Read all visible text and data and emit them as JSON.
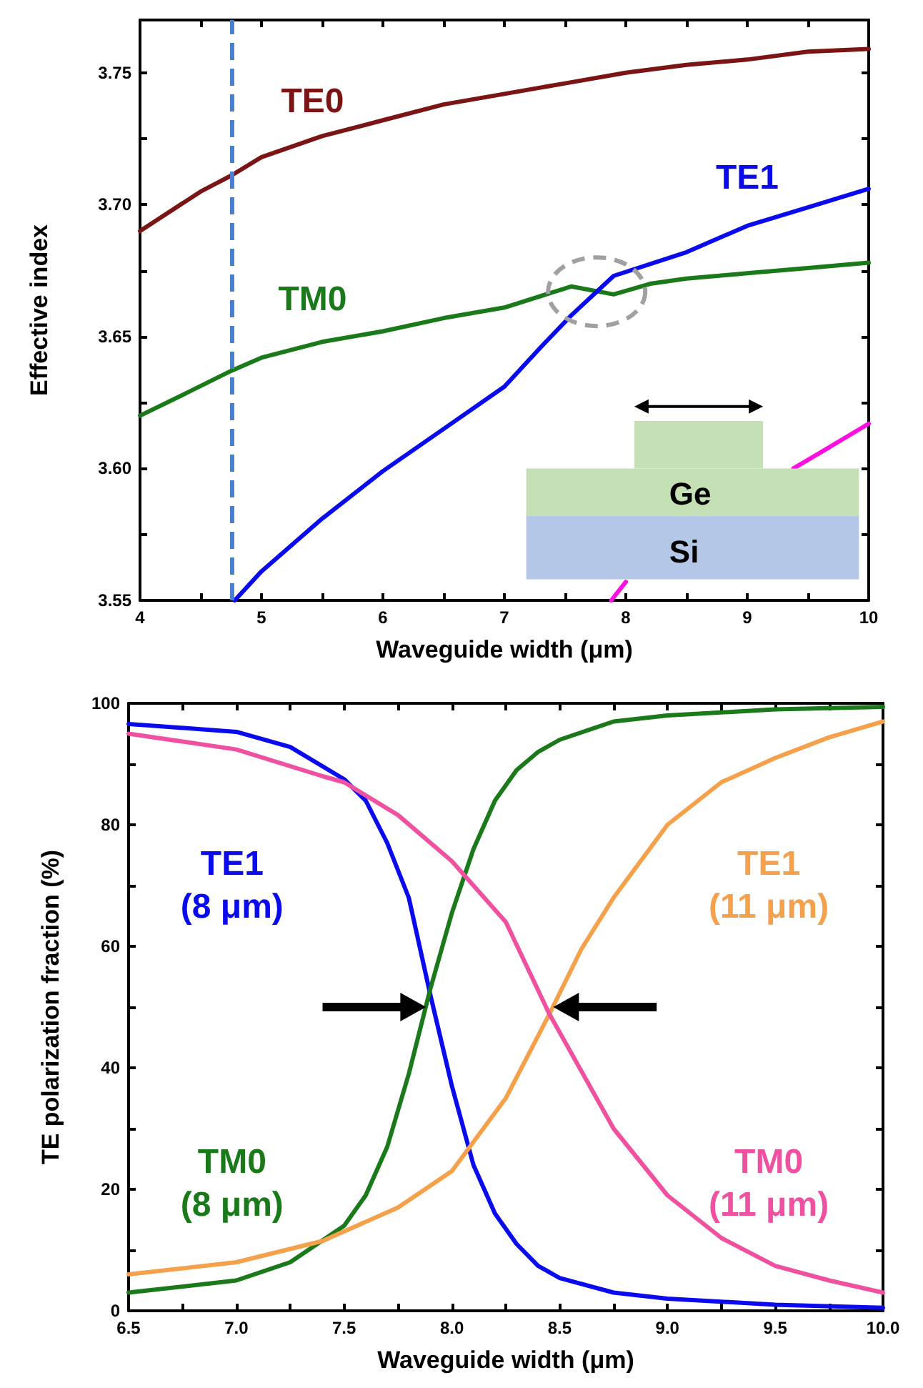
{
  "chart_data": [
    {
      "type": "line",
      "xlabel": "Waveguide width (μm)",
      "ylabel": "Effective index",
      "xlim": [
        4,
        10
      ],
      "ylim": [
        3.55,
        3.77
      ],
      "xticks": [
        4,
        {
          "value": 4.5,
          "label": null
        },
        5,
        {
          "value": 5.5,
          "label": null
        },
        6,
        {
          "value": 6.5,
          "label": null
        },
        7,
        {
          "value": 7.5,
          "label": null
        },
        8,
        {
          "value": 8.5,
          "label": null
        },
        9,
        {
          "value": 9.5,
          "label": null
        },
        10
      ],
      "yticks": [
        {
          "value": 3.55,
          "label": "3.55"
        },
        {
          "value": 3.575,
          "label": null
        },
        {
          "value": 3.6,
          "label": "3.60"
        },
        {
          "value": 3.625,
          "label": null
        },
        {
          "value": 3.65,
          "label": "3.65"
        },
        {
          "value": 3.675,
          "label": null
        },
        {
          "value": 3.7,
          "label": "3.70"
        },
        {
          "value": 3.725,
          "label": null
        },
        {
          "value": 3.75,
          "label": "3.75"
        }
      ],
      "grid": false,
      "marker": "none",
      "line_style": "solid",
      "series": [
        {
          "name": "TE0",
          "color": "#7b1414",
          "x": [
            4,
            4.5,
            4.75,
            5,
            5.5,
            6,
            6.5,
            7,
            7.5,
            8,
            8.5,
            9,
            9.5,
            10
          ],
          "values": [
            3.69,
            3.705,
            3.711,
            3.718,
            3.726,
            3.732,
            3.738,
            3.742,
            3.746,
            3.75,
            3.753,
            3.755,
            3.758,
            3.759
          ]
        },
        {
          "name": "TM0",
          "color": "#1a7a1a",
          "x": [
            4,
            4.4,
            4.75,
            5,
            5.5,
            6,
            6.5,
            7,
            7.55,
            7.9,
            8.2,
            8.5,
            9,
            9.5,
            10
          ],
          "values": [
            3.62,
            3.629,
            3.637,
            3.642,
            3.648,
            3.652,
            3.657,
            3.661,
            3.669,
            3.666,
            3.67,
            3.672,
            3.674,
            3.676,
            3.678
          ]
        },
        {
          "name": "TE1",
          "color": "#0a0aee",
          "x": [
            4.78,
            5,
            5.5,
            6,
            6.5,
            7,
            7.3,
            7.55,
            7.9,
            8.5,
            9,
            9.5,
            10
          ],
          "values": [
            3.55,
            3.561,
            3.581,
            3.599,
            3.615,
            3.631,
            3.646,
            3.658,
            3.673,
            3.682,
            3.692,
            3.699,
            3.706
          ]
        },
        {
          "color": "#ff10e0",
          "x": [
            7.88,
            8.0,
            9.0,
            9.38,
            9.6,
            10
          ],
          "values": [
            3.55,
            3.557,
            null,
            3.6,
            3.606,
            3.617
          ]
        }
      ],
      "ref_lines": [
        {
          "axis": "x",
          "value": 4.75,
          "color": "#4a7fd0",
          "line_style": "dashed"
        }
      ],
      "annotations": [
        "Ge",
        "Si"
      ]
    },
    {
      "type": "line",
      "xlabel": "Waveguide width (μm)",
      "ylabel": "TE polarization fraction (%)",
      "xlim": [
        6.5,
        10
      ],
      "ylim": [
        0,
        100
      ],
      "xticks": [
        6.5,
        {
          "value": 6.75,
          "label": null
        },
        {
          "value": 7,
          "label": "7.0"
        },
        {
          "value": 7.25,
          "label": null
        },
        7.5,
        {
          "value": 7.75,
          "label": null
        },
        {
          "value": 8,
          "label": "8.0"
        },
        {
          "value": 8.25,
          "label": null
        },
        8.5,
        {
          "value": 8.75,
          "label": null
        },
        {
          "value": 9,
          "label": "9.0"
        },
        {
          "value": 9.25,
          "label": null
        },
        9.5,
        {
          "value": 9.75,
          "label": null
        },
        {
          "value": 10,
          "label": "10.0"
        }
      ],
      "yticks": [
        0,
        {
          "value": 10,
          "label": null
        },
        20,
        {
          "value": 30,
          "label": null
        },
        40,
        {
          "value": 50,
          "label": null
        },
        60,
        {
          "value": 70,
          "label": null
        },
        80,
        {
          "value": 90,
          "label": null
        },
        100
      ],
      "grid": false,
      "marker": "none",
      "line_style": "solid",
      "series": [
        {
          "name": "TE1 (8 μm)",
          "color": "#0a0aee",
          "x": [
            6.5,
            7,
            7.25,
            7.5,
            7.6,
            7.7,
            7.8,
            7.9,
            8,
            8.1,
            8.2,
            8.3,
            8.4,
            8.5,
            8.75,
            9,
            9.5,
            10
          ],
          "values": [
            96.6,
            95.3,
            92.8,
            87.5,
            84,
            77,
            68,
            52,
            37,
            24,
            16,
            11,
            7.4,
            5.4,
            3,
            2,
            1,
            0.5
          ]
        },
        {
          "name": "TM0 (8 μm)",
          "color": "#1a7a1a",
          "x": [
            6.5,
            7,
            7.25,
            7.5,
            7.6,
            7.7,
            7.8,
            7.9,
            8,
            8.1,
            8.2,
            8.3,
            8.4,
            8.5,
            8.75,
            9,
            9.5,
            10
          ],
          "values": [
            3,
            5,
            8,
            14,
            19,
            27,
            39,
            53,
            65.5,
            76,
            84,
            89,
            92,
            94,
            97,
            98,
            99,
            99.4
          ]
        },
        {
          "name": "TE1 (11 μm)",
          "color": "#f5a04a",
          "x": [
            6.5,
            7,
            7.4,
            7.75,
            8,
            8.25,
            8.45,
            8.6,
            8.75,
            9,
            9.25,
            9.5,
            9.75,
            10
          ],
          "values": [
            6,
            8,
            11.5,
            17,
            23,
            35,
            48.7,
            59.5,
            68,
            80,
            87,
            91,
            94.4,
            97
          ]
        },
        {
          "name": "TM0 (11 μm)",
          "color": "#f050a0",
          "x": [
            6.5,
            7,
            7.4,
            7.5,
            7.75,
            8,
            8.25,
            8.45,
            8.75,
            9,
            9.25,
            9.5,
            9.75,
            10
          ],
          "values": [
            95,
            92.4,
            88,
            87,
            81.6,
            74,
            64,
            49,
            30,
            19,
            12,
            7.4,
            5,
            3
          ]
        }
      ]
    }
  ]
}
